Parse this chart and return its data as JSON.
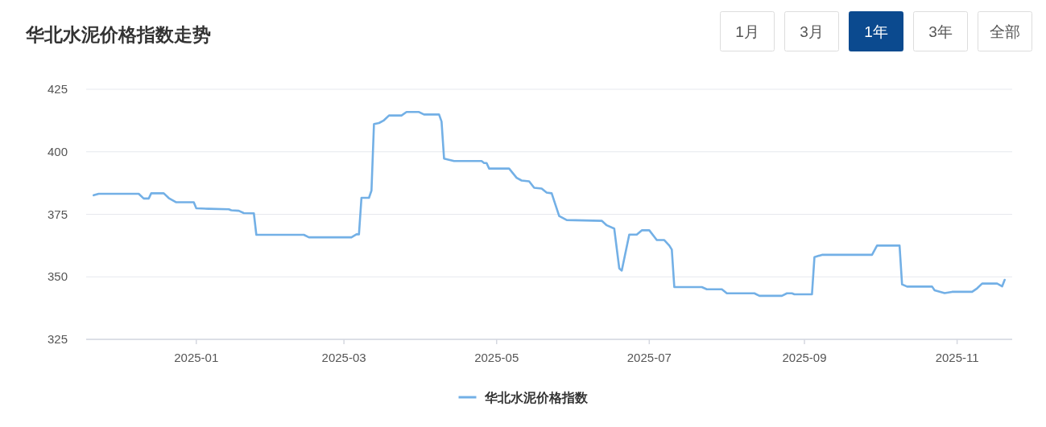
{
  "chart_data": {
    "type": "line",
    "title": "华北水泥价格指数走势",
    "annotations": [
      "1月",
      "3月",
      "1年",
      "3年",
      "全部"
    ],
    "series": [
      {
        "name": "华北水泥价格指数",
        "color": "#73b0e6",
        "x": [
          "2024-11-21",
          "2024-11-23",
          "2024-12-09",
          "2024-12-11",
          "2024-12-13",
          "2024-12-14",
          "2024-12-19",
          "2024-12-21",
          "2024-12-24",
          "2024-12-31",
          "2025-01-01",
          "2025-01-06",
          "2025-01-14",
          "2025-01-15",
          "2025-01-18",
          "2025-01-20",
          "2025-01-24",
          "2025-01-25",
          "2025-02-13",
          "2025-02-15",
          "2025-03-04",
          "2025-03-06",
          "2025-03-07",
          "2025-03-08",
          "2025-03-11",
          "2025-03-12",
          "2025-03-13",
          "2025-03-15",
          "2025-03-17",
          "2025-03-19",
          "2025-03-24",
          "2025-03-26",
          "2025-03-31",
          "2025-04-02",
          "2025-04-08",
          "2025-04-09",
          "2025-04-10",
          "2025-04-14",
          "2025-04-25",
          "2025-04-26",
          "2025-04-27",
          "2025-04-28",
          "2025-05-06",
          "2025-05-09",
          "2025-05-11",
          "2025-05-14",
          "2025-05-16",
          "2025-05-19",
          "2025-05-21",
          "2025-05-23",
          "2025-05-26",
          "2025-05-29",
          "2025-06-12",
          "2025-06-14",
          "2025-06-17",
          "2025-06-19",
          "2025-06-20",
          "2025-06-23",
          "2025-06-26",
          "2025-06-28",
          "2025-07-01",
          "2025-07-04",
          "2025-07-07",
          "2025-07-09",
          "2025-07-10",
          "2025-07-11",
          "2025-07-22",
          "2025-07-24",
          "2025-07-30",
          "2025-08-01",
          "2025-08-12",
          "2025-08-14",
          "2025-08-23",
          "2025-08-25",
          "2025-08-27",
          "2025-08-28",
          "2025-09-04",
          "2025-09-05",
          "2025-09-08",
          "2025-09-28",
          "2025-09-30",
          "2025-10-09",
          "2025-10-10",
          "2025-10-12",
          "2025-10-22",
          "2025-10-23",
          "2025-10-27",
          "2025-10-30",
          "2025-11-07",
          "2025-11-09",
          "2025-11-11",
          "2025-11-17",
          "2025-11-19",
          "2025-11-20"
        ],
        "values": [
          382.6,
          383.2,
          383.2,
          381.3,
          381.3,
          383.4,
          383.4,
          381.5,
          379.8,
          379.8,
          377.4,
          377.2,
          377.0,
          376.6,
          376.4,
          375.5,
          375.4,
          366.8,
          366.8,
          365.8,
          365.8,
          367.0,
          367.0,
          381.6,
          381.6,
          384.5,
          411.1,
          411.5,
          412.6,
          414.5,
          414.5,
          415.9,
          415.9,
          414.9,
          414.9,
          412.1,
          397.3,
          396.3,
          396.3,
          395.5,
          395.5,
          393.3,
          393.3,
          389.6,
          388.5,
          388.2,
          385.6,
          385.3,
          383.7,
          383.4,
          374.3,
          372.7,
          372.4,
          370.6,
          369.3,
          353.4,
          352.5,
          366.9,
          366.9,
          368.6,
          368.6,
          364.7,
          364.7,
          362.5,
          360.9,
          345.9,
          345.9,
          345.0,
          345.0,
          343.4,
          343.4,
          342.4,
          342.4,
          343.4,
          343.4,
          343.0,
          343.0,
          357.9,
          358.8,
          358.8,
          362.5,
          362.5,
          347.0,
          346.1,
          346.1,
          344.6,
          343.5,
          344.0,
          344.0,
          345.4,
          347.3,
          347.3,
          346.2,
          348.8
        ]
      }
    ],
    "xlim": [
      "2024-11-18",
      "2025-11-23"
    ],
    "xticks": [
      "2025-01",
      "2025-03",
      "2025-05",
      "2025-07",
      "2025-09",
      "2025-11"
    ],
    "ylim": [
      325,
      425
    ],
    "yticks": [
      325,
      350,
      375,
      400,
      425
    ],
    "grid": "y",
    "legend": "bottom"
  }
}
